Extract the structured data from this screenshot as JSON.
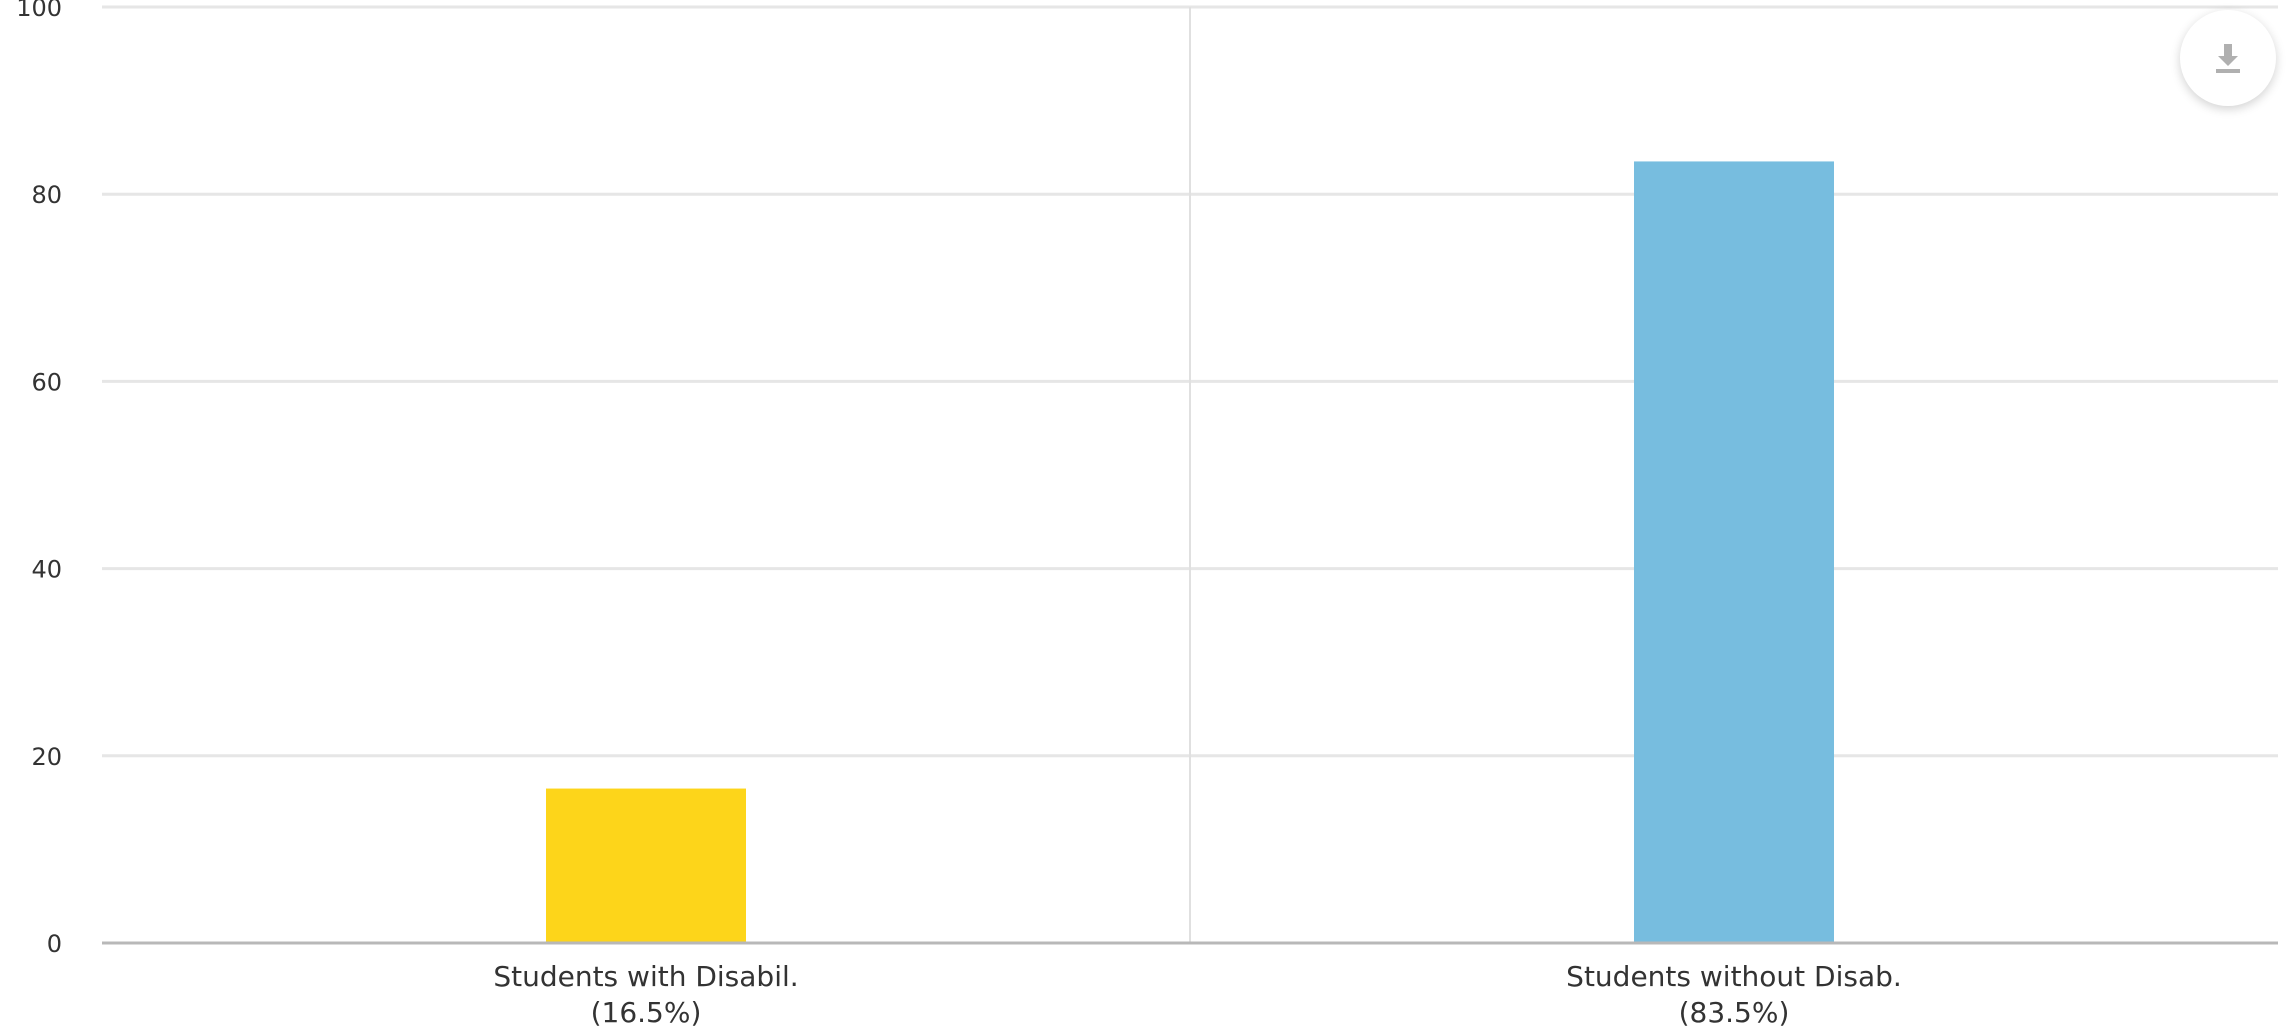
{
  "chart_data": {
    "type": "bar",
    "categories": [
      {
        "line1": "Students with Disabil.",
        "line2": "(16.5%)"
      },
      {
        "line1": "Students without Disab.",
        "line2": "(83.5%)"
      }
    ],
    "values": [
      16.5,
      83.5
    ],
    "colors": [
      "#fdd51a",
      "#77bddf"
    ],
    "ylim": [
      0,
      100
    ],
    "yticks": [
      "0",
      "20",
      "40",
      "60",
      "80",
      "100"
    ],
    "grid": true
  },
  "toolbar": {
    "download_icon": "download-icon"
  }
}
